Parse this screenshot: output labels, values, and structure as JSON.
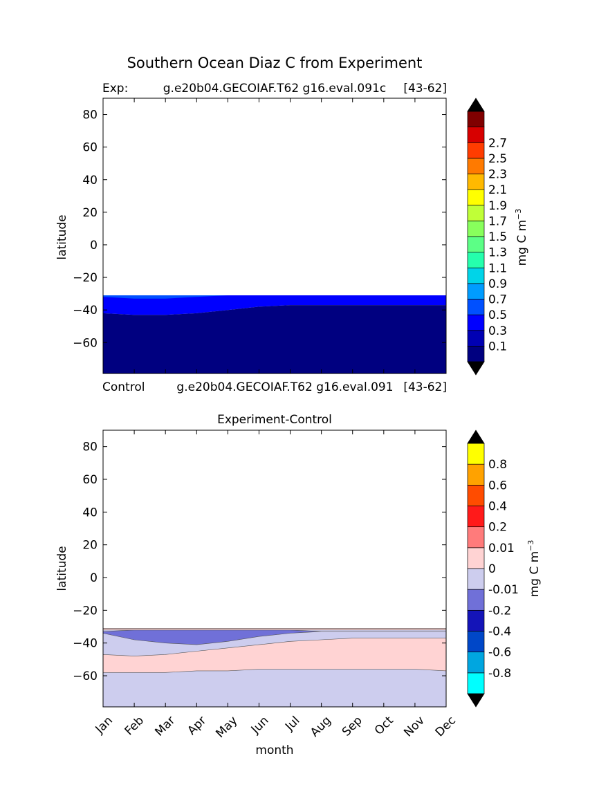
{
  "figure": {
    "suptitle": "Southern Ocean Diaz C from Experiment"
  },
  "chart_data": [
    {
      "type": "heatmap",
      "panel": "top",
      "title_left": "Exp:",
      "title_center": "g.e20b04.GECOIAF.T62 g16.eval.091c",
      "title_right": "[43-62]",
      "bottom_left": "Control",
      "bottom_center": "g.e20b04.GECOIAF.T62 g16.eval.091",
      "bottom_right": "[43-62]",
      "ylabel": "latitude",
      "ylim": [
        -79,
        90
      ],
      "yticks": [
        -60,
        -40,
        -20,
        0,
        20,
        40,
        60,
        80
      ],
      "ytick_labels": [
        "−60",
        "−40",
        "−20",
        "0",
        "20",
        "40",
        "60",
        "80"
      ],
      "xlim": [
        0,
        11
      ],
      "x_months": [
        "Jan",
        "Feb",
        "Mar",
        "Apr",
        "May",
        "Jun",
        "Jul",
        "Aug",
        "Sep",
        "Oct",
        "Nov",
        "Dec"
      ],
      "data_extent_lat": [
        -79,
        -31
      ],
      "colorbar": {
        "label": "mg C m",
        "label_exponent": "−3",
        "levels": [
          "0.1",
          "0.3",
          "0.5",
          "0.7",
          "0.9",
          "1.1",
          "1.3",
          "1.5",
          "1.7",
          "1.9",
          "2.1",
          "2.3",
          "2.5",
          "2.7"
        ],
        "colors": [
          "#000080",
          "#0000b3",
          "#0000ff",
          "#0050ff",
          "#009cff",
          "#00d4e8",
          "#25ffad",
          "#5cff86",
          "#88ff5c",
          "#c0ff37",
          "#ffff00",
          "#ffb900",
          "#ff7a00",
          "#ff3c00",
          "#d70000",
          "#800000"
        ],
        "extend_under_color": "#000000",
        "extend_over_color": "#000000"
      },
      "regions": [
        {
          "name": "0.1-0.3",
          "color": "#0000ff",
          "upper": [
            -31,
            -31,
            -31,
            -31,
            -31,
            -31,
            -31,
            -31,
            -31,
            -31,
            -31,
            -31
          ],
          "lower": [
            -42,
            -43,
            -43,
            -42,
            -40,
            -38,
            -37,
            -37,
            -37,
            -37,
            -37,
            -37
          ]
        },
        {
          "name": "0-0.1",
          "color": "#000080",
          "upper": [
            -42,
            -43,
            -43,
            -42,
            -40,
            -38,
            -37,
            -37,
            -37,
            -37,
            -37,
            -37
          ],
          "lower": [
            -79,
            -79,
            -79,
            -79,
            -79,
            -79,
            -79,
            -79,
            -79,
            -79,
            -79,
            -79
          ]
        },
        {
          "name": "0.3-0.5",
          "color": "#0050ff",
          "upper": [
            -31,
            -31,
            -31,
            -31,
            -31,
            -31,
            -31,
            -31,
            -31,
            -31,
            -31,
            -31
          ],
          "lower": [
            -32,
            -33,
            -33,
            -32,
            -31,
            -31,
            -31,
            -31,
            -31,
            -31,
            -31,
            -31
          ]
        }
      ]
    },
    {
      "type": "heatmap",
      "panel": "bottom",
      "title": "Experiment-Control",
      "ylabel": "latitude",
      "xlabel": "month",
      "ylim": [
        -79,
        90
      ],
      "yticks": [
        -60,
        -40,
        -20,
        0,
        20,
        40,
        60,
        80
      ],
      "ytick_labels": [
        "−60",
        "−40",
        "−20",
        "0",
        "20",
        "40",
        "60",
        "80"
      ],
      "xlim": [
        0,
        11
      ],
      "x_months": [
        "Jan",
        "Feb",
        "Mar",
        "Apr",
        "May",
        "Jun",
        "Jul",
        "Aug",
        "Sep",
        "Oct",
        "Nov",
        "Dec"
      ],
      "data_extent_lat": [
        -79,
        -31
      ],
      "colorbar": {
        "label": "mg C m",
        "label_exponent": "−3",
        "levels": [
          "-0.8",
          "-0.6",
          "-0.4",
          "-0.2",
          "-0.01",
          "0",
          "0.01",
          "0.2",
          "0.4",
          "0.6",
          "0.8"
        ],
        "colors": [
          "#00ffff",
          "#00a6e0",
          "#0047c8",
          "#1414b8",
          "#7070d8",
          "#cdcdee",
          "#ffd3d3",
          "#ff7b7b",
          "#ff1a1a",
          "#ff4c00",
          "#ffa200",
          "#ffff00"
        ],
        "extend_under_color": "#000000",
        "extend_over_color": "#000000"
      },
      "regions": [
        {
          "name": "-0.01-0",
          "color": "#cdcdee",
          "upper": [
            -31,
            -31,
            -31,
            -31,
            -31,
            -31,
            -31,
            -31,
            -31,
            -31,
            -31,
            -31
          ],
          "lower": [
            -79,
            -79,
            -79,
            -79,
            -79,
            -79,
            -79,
            -79,
            -79,
            -79,
            -79,
            -79
          ]
        },
        {
          "name": "0-0.01",
          "color": "#ffd3d3",
          "upper": [
            -47,
            -48,
            -47,
            -45,
            -43,
            -41,
            -39,
            -38,
            -37,
            -37,
            -37,
            -37
          ],
          "lower": [
            -58,
            -58,
            -58,
            -57,
            -57,
            -56,
            -56,
            -56,
            -56,
            -56,
            -56,
            -57
          ]
        },
        {
          "name": "-0.2--0.01",
          "color": "#7070d8",
          "upper": [
            -33,
            -32,
            -32,
            -32,
            -32,
            -32,
            -32,
            -33,
            -33,
            -33,
            -33,
            -33
          ],
          "lower": [
            -34,
            -38,
            -40,
            -41,
            -39,
            -36,
            -34,
            -33,
            -33,
            -33,
            -33,
            -33
          ]
        },
        {
          "name": "0-0.01-top",
          "color": "#ffd3d3",
          "upper": [
            -31,
            -31,
            -31,
            -31,
            -31,
            -31,
            -31,
            -31,
            -31,
            -31,
            -31,
            -31
          ],
          "lower": [
            -32,
            -32,
            -32,
            -32,
            -32,
            -32,
            -32,
            -32,
            -32,
            -32,
            -32,
            -32
          ]
        }
      ]
    }
  ]
}
